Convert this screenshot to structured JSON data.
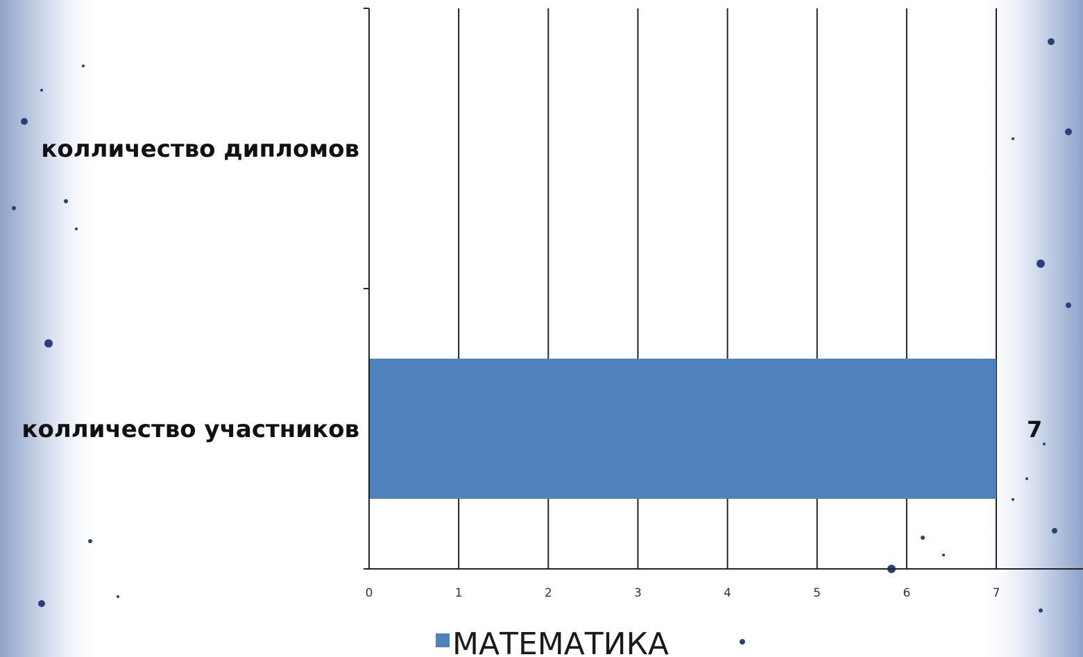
{
  "chart_data": {
    "type": "bar",
    "orientation": "horizontal",
    "categories": [
      "колличество участников",
      "колличество диплломов"
    ],
    "category_labels_shown": [
      "колличество участников",
      "колличество дипломов"
    ],
    "series": [
      {
        "name": "МАТЕМАТИКА",
        "values": [
          7,
          0
        ],
        "data_labels": [
          "7",
          ""
        ]
      }
    ],
    "xlim": [
      0,
      7
    ],
    "x_ticks": [
      "0",
      "1",
      "2",
      "3",
      "4",
      "5",
      "6",
      "7"
    ],
    "grid": "vertical",
    "legend": "bottom",
    "colors": {
      "bar": "#4f81bd",
      "grid": "#222222",
      "text": "#111111"
    }
  }
}
